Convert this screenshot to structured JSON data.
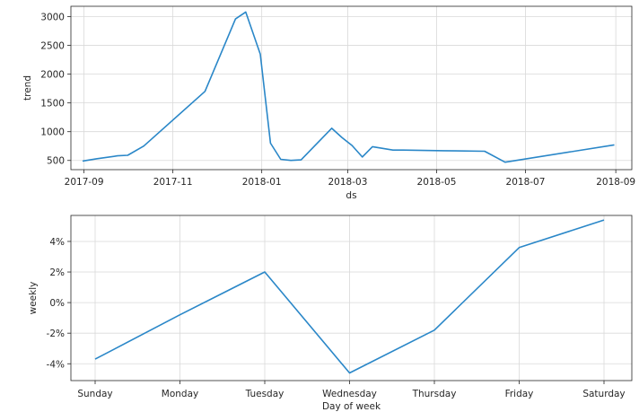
{
  "chart_data": [
    {
      "type": "line",
      "xlabel": "ds",
      "ylabel": "trend",
      "x_type": "date",
      "xlim": [
        "2017-08-23",
        "2018-09-12"
      ],
      "ylim": [
        340,
        3180
      ],
      "grid": true,
      "x_ticks": [
        {
          "value": "2017-09-01",
          "label": "2017-09"
        },
        {
          "value": "2017-11-01",
          "label": "2017-11"
        },
        {
          "value": "2018-01-01",
          "label": "2018-01"
        },
        {
          "value": "2018-03-01",
          "label": "2018-03"
        },
        {
          "value": "2018-05-01",
          "label": "2018-05"
        },
        {
          "value": "2018-07-01",
          "label": "2018-07"
        },
        {
          "value": "2018-09-01",
          "label": "2018-09"
        }
      ],
      "y_ticks": [
        500,
        1000,
        1500,
        2000,
        2500,
        3000
      ],
      "series": [
        {
          "color": "#2a87c8",
          "x": [
            "2017-08-31",
            "2017-09-10",
            "2017-09-24",
            "2017-10-01",
            "2017-10-12",
            "2017-11-23",
            "2017-12-14",
            "2017-12-21",
            "2017-12-31",
            "2018-01-07",
            "2018-01-14",
            "2018-01-21",
            "2018-01-28",
            "2018-02-18",
            "2018-02-25",
            "2018-03-04",
            "2018-03-11",
            "2018-03-18",
            "2018-04-01",
            "2018-04-08",
            "2018-05-06",
            "2018-06-03",
            "2018-06-17",
            "2018-08-31"
          ],
          "y": [
            490,
            530,
            580,
            590,
            750,
            1700,
            2960,
            3080,
            2350,
            800,
            520,
            500,
            510,
            1060,
            900,
            760,
            560,
            740,
            680,
            680,
            670,
            660,
            470,
            770
          ]
        }
      ]
    },
    {
      "type": "line",
      "xlabel": "Day of week",
      "ylabel": "weekly",
      "categories": [
        "Sunday",
        "Monday",
        "Tuesday",
        "Wednesday",
        "Thursday",
        "Friday",
        "Saturday"
      ],
      "ylim": [
        -5.1,
        5.7
      ],
      "y_unit": "%",
      "grid": true,
      "y_ticks": [
        {
          "value": -4,
          "label": "-4%"
        },
        {
          "value": -2,
          "label": "-2%"
        },
        {
          "value": 0,
          "label": "0%"
        },
        {
          "value": 2,
          "label": "2%"
        },
        {
          "value": 4,
          "label": "4%"
        }
      ],
      "series": [
        {
          "color": "#2a87c8",
          "values": [
            -3.7,
            -0.8,
            2.0,
            -4.6,
            -1.8,
            3.6,
            5.4
          ]
        }
      ]
    }
  ]
}
